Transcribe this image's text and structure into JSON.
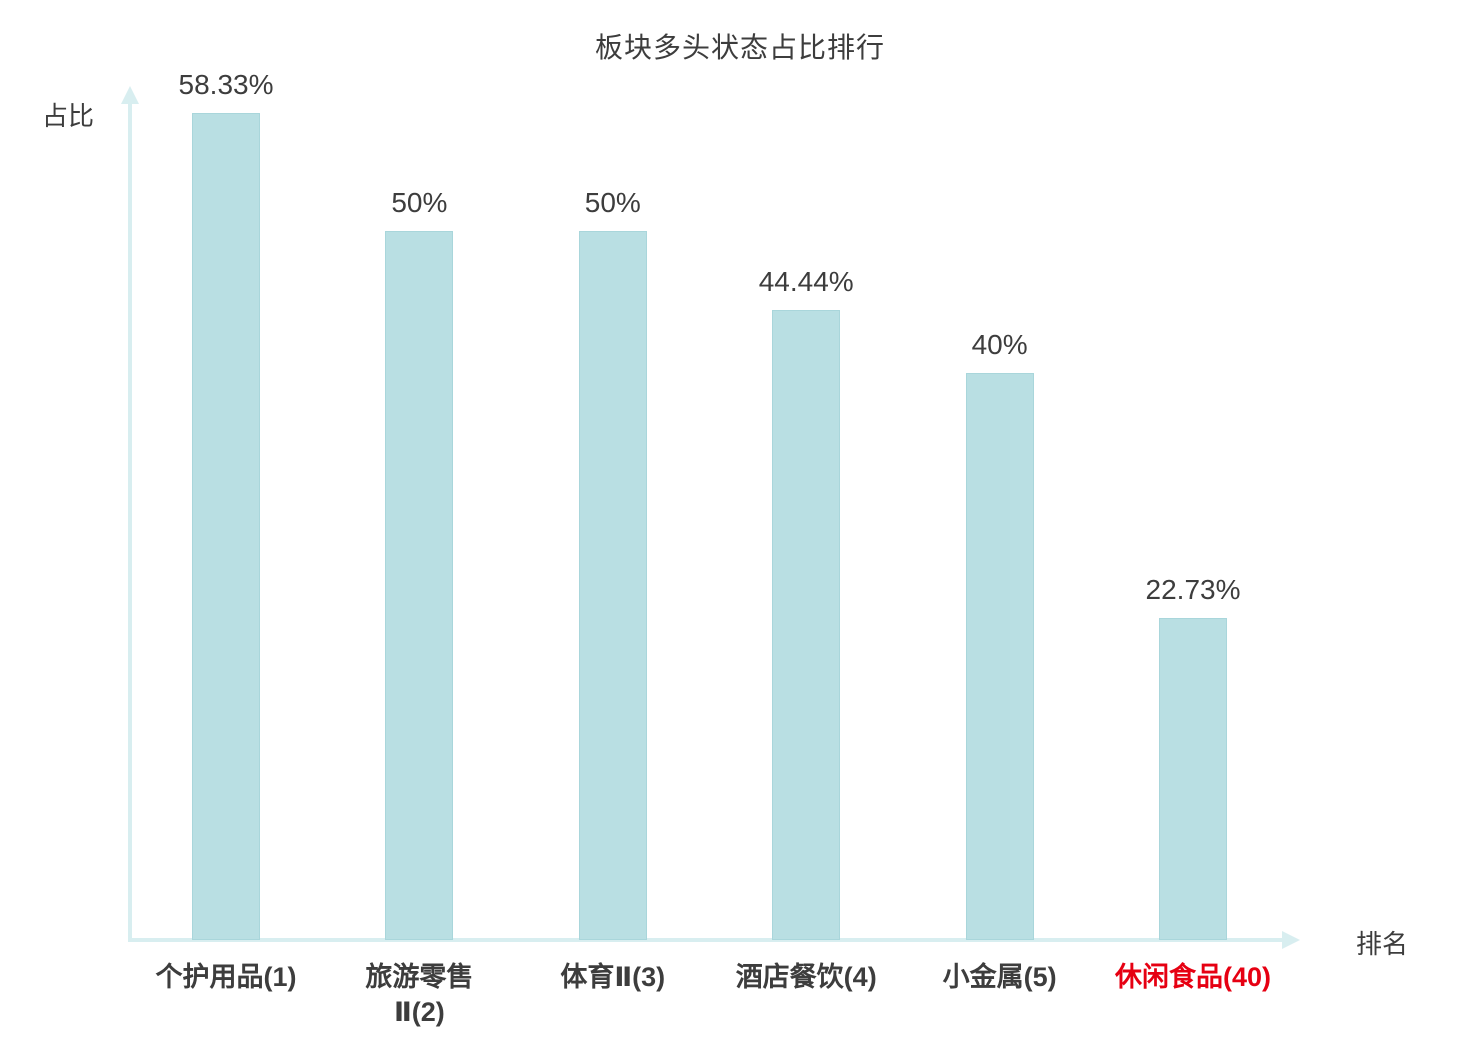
{
  "chart_data": {
    "type": "bar",
    "title": "板块多头状态占比排行",
    "xlabel": "排名",
    "ylabel": "占比",
    "categories": [
      "个护用品(1)",
      "旅游零售\nⅡ(2)",
      "体育Ⅱ(3)",
      "酒店餐饮(4)",
      "小金属(5)",
      "休闲食品(40)"
    ],
    "values": [
      58.33,
      50,
      50,
      44.44,
      40,
      22.73
    ],
    "value_labels": [
      "58.33%",
      "50%",
      "50%",
      "44.44%",
      "40%",
      "22.73%"
    ],
    "category_colors": [
      "#3d3d3d",
      "#3d3d3d",
      "#3d3d3d",
      "#3d3d3d",
      "#3d3d3d",
      "#e60012"
    ],
    "bar_color": "#b9dfe3",
    "bar_border_color": "#a9d6db",
    "axis_color": "#d8eef0",
    "text_color": "#3d3d3d",
    "ylim": [
      0,
      60
    ],
    "grid": false,
    "legend": "none"
  }
}
